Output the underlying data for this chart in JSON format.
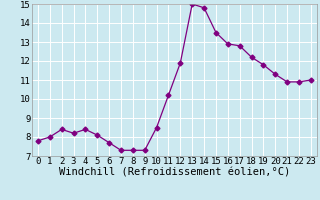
{
  "x": [
    0,
    1,
    2,
    3,
    4,
    5,
    6,
    7,
    8,
    9,
    10,
    11,
    12,
    13,
    14,
    15,
    16,
    17,
    18,
    19,
    20,
    21,
    22,
    23
  ],
  "y": [
    7.8,
    8.0,
    8.4,
    8.2,
    8.4,
    8.1,
    7.7,
    7.3,
    7.3,
    7.3,
    8.5,
    10.2,
    11.9,
    15.0,
    14.8,
    13.5,
    12.9,
    12.8,
    12.2,
    11.8,
    11.3,
    10.9,
    10.9,
    11.0
  ],
  "xlabel": "Windchill (Refroidissement éolien,°C)",
  "ylim": [
    7,
    15
  ],
  "xlim": [
    -0.5,
    23.5
  ],
  "yticks": [
    7,
    8,
    9,
    10,
    11,
    12,
    13,
    14,
    15
  ],
  "xticks": [
    0,
    1,
    2,
    3,
    4,
    5,
    6,
    7,
    8,
    9,
    10,
    11,
    12,
    13,
    14,
    15,
    16,
    17,
    18,
    19,
    20,
    21,
    22,
    23
  ],
  "line_color": "#800080",
  "marker": "D",
  "marker_size": 2.5,
  "background_color": "#cce9f0",
  "grid_color": "#ffffff",
  "tick_label_fontsize": 6.5,
  "xlabel_fontsize": 7.5
}
